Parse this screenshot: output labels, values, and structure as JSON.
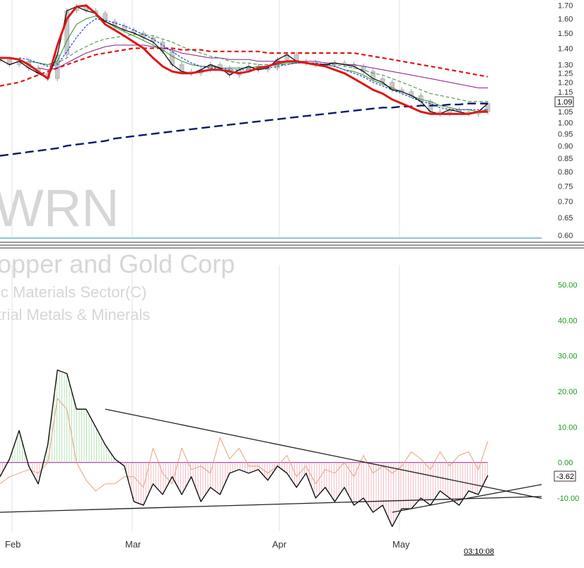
{
  "watermark": {
    "symbol": "WRN",
    "company": "opper and Gold Corp",
    "sector": "ic Materials Sector(C)",
    "industry": "trial Metals & Minerals"
  },
  "price_label": "1.09",
  "indicator_label": "-3.62",
  "timestamp": "03:10:08",
  "chart_data": [
    {
      "type": "line",
      "panel": "price",
      "yscale": "log",
      "ylim": [
        0.6,
        1.72
      ],
      "x_ticks": [
        "Feb",
        "Mar",
        "Apr",
        "May"
      ],
      "y_ticks": [
        "1.70",
        "1.60",
        "1.50",
        "1.40",
        "1.30",
        "1.25",
        "1.20",
        "1.15",
        "1.10",
        "1.05",
        "1.00",
        "0.95",
        "0.90",
        "0.85",
        "0.80",
        "0.75",
        "0.70",
        "0.65",
        "0.60"
      ],
      "series": [
        {
          "style": "close",
          "color": "#000000",
          "values": [
            1.33,
            1.3,
            1.32,
            1.28,
            1.25,
            1.22,
            1.36,
            1.66,
            1.69,
            1.66,
            1.64,
            1.58,
            1.55,
            1.52,
            1.5,
            1.47,
            1.44,
            1.38,
            1.3,
            1.26,
            1.25,
            1.27,
            1.3,
            1.28,
            1.24,
            1.27,
            1.29,
            1.27,
            1.28,
            1.33,
            1.36,
            1.32,
            1.31,
            1.3,
            1.3,
            1.31,
            1.3,
            1.29,
            1.26,
            1.22,
            1.2,
            1.16,
            1.15,
            1.13,
            1.1,
            1.05,
            1.04,
            1.06,
            1.05,
            1.04,
            1.05,
            1.09
          ]
        },
        {
          "style": "ma_red_thick",
          "color": "#e01515",
          "values": [
            1.34,
            1.34,
            1.33,
            1.3,
            1.26,
            1.22,
            1.42,
            1.6,
            1.69,
            1.7,
            1.64,
            1.56,
            1.52,
            1.48,
            1.44,
            1.4,
            1.34,
            1.29,
            1.26,
            1.25,
            1.25,
            1.26,
            1.27,
            1.27,
            1.26,
            1.25,
            1.26,
            1.28,
            1.29,
            1.31,
            1.32,
            1.32,
            1.31,
            1.3,
            1.29,
            1.27,
            1.25,
            1.22,
            1.19,
            1.16,
            1.14,
            1.11,
            1.09,
            1.07,
            1.05,
            1.04,
            1.04,
            1.04,
            1.04,
            1.04,
            1.05,
            1.05
          ]
        },
        {
          "style": "ma_blue_dotted",
          "color": "#1f3fd6",
          "values": [
            null,
            null,
            1.34,
            1.33,
            1.31,
            1.29,
            1.3,
            1.38,
            1.47,
            1.55,
            1.6,
            1.59,
            1.57,
            1.55,
            1.52,
            1.49,
            1.46,
            1.42,
            1.38,
            1.34,
            1.31,
            1.29,
            1.28,
            1.28,
            1.27,
            1.27,
            1.27,
            1.27,
            1.28,
            1.29,
            1.3,
            1.31,
            1.31,
            1.31,
            1.3,
            1.29,
            1.27,
            1.25,
            1.23,
            1.2,
            1.18,
            1.16,
            1.14,
            1.12,
            1.1,
            1.09,
            1.07,
            1.06,
            1.06,
            1.06,
            1.06,
            1.06
          ]
        },
        {
          "style": "ma_green",
          "color": "#2a8a2a",
          "values": [
            null,
            null,
            null,
            1.32,
            1.31,
            1.3,
            1.32,
            1.45,
            1.56,
            1.6,
            1.62,
            1.58,
            1.54,
            1.51,
            1.48,
            1.45,
            1.42,
            1.39,
            1.35,
            1.32,
            1.3,
            1.29,
            1.29,
            1.28,
            1.28,
            1.28,
            1.28,
            1.29,
            1.29,
            1.3,
            1.31,
            1.31,
            1.31,
            1.3,
            1.3,
            1.29,
            1.27,
            1.26,
            1.24,
            1.21,
            1.19,
            1.17,
            1.15,
            1.13,
            1.11,
            1.1,
            1.08,
            1.07,
            1.06,
            1.06,
            1.05,
            1.06
          ]
        },
        {
          "style": "ma_green_dashed",
          "color": "#3a8a3a",
          "values": [
            null,
            null,
            null,
            null,
            1.31,
            1.3,
            1.31,
            1.34,
            1.38,
            1.41,
            1.44,
            1.46,
            1.47,
            1.48,
            1.49,
            1.49,
            1.48,
            1.46,
            1.44,
            1.41,
            1.39,
            1.37,
            1.35,
            1.34,
            1.32,
            1.31,
            1.31,
            1.3,
            1.3,
            1.3,
            1.3,
            1.31,
            1.31,
            1.31,
            1.3,
            1.3,
            1.29,
            1.28,
            1.27,
            1.25,
            1.24,
            1.22,
            1.2,
            1.18,
            1.16,
            1.14,
            1.13,
            1.12,
            1.11,
            1.1,
            1.1,
            1.1
          ]
        },
        {
          "style": "ma_purple",
          "color": "#8a1a8a",
          "values": [
            null,
            null,
            null,
            null,
            1.28,
            1.27,
            1.28,
            1.31,
            1.34,
            1.37,
            1.39,
            1.41,
            1.42,
            1.42,
            1.42,
            1.42,
            1.41,
            1.4,
            1.39,
            1.37,
            1.36,
            1.35,
            1.34,
            1.34,
            1.33,
            1.33,
            1.33,
            1.32,
            1.32,
            1.32,
            1.32,
            1.32,
            1.32,
            1.32,
            1.31,
            1.31,
            1.3,
            1.3,
            1.29,
            1.28,
            1.27,
            1.26,
            1.25,
            1.24,
            1.23,
            1.22,
            1.21,
            1.2,
            1.19,
            1.18,
            1.17,
            1.17
          ]
        },
        {
          "style": "ma_red_dashed",
          "color": "#e01515",
          "values": [
            1.18,
            1.19,
            1.2,
            1.22,
            1.24,
            1.26,
            1.28,
            1.3,
            1.32,
            1.34,
            1.36,
            1.37,
            1.38,
            1.39,
            1.4,
            1.4,
            1.4,
            1.4,
            1.4,
            1.39,
            1.39,
            1.39,
            1.38,
            1.38,
            1.38,
            1.38,
            1.38,
            1.38,
            1.37,
            1.37,
            1.37,
            1.37,
            1.37,
            1.37,
            1.37,
            1.37,
            1.37,
            1.37,
            1.36,
            1.35,
            1.34,
            1.33,
            1.32,
            1.31,
            1.3,
            1.29,
            1.28,
            1.27,
            1.26,
            1.25,
            1.24,
            1.23
          ]
        },
        {
          "style": "ma_navy_dashed",
          "color": "#0a1a6a",
          "values": [
            0.86,
            0.865,
            0.87,
            0.875,
            0.88,
            0.885,
            0.89,
            0.9,
            0.905,
            0.91,
            0.915,
            0.92,
            0.93,
            0.935,
            0.94,
            0.945,
            0.95,
            0.955,
            0.96,
            0.965,
            0.97,
            0.975,
            0.98,
            0.985,
            0.99,
            0.995,
            1.0,
            1.005,
            1.01,
            1.015,
            1.02,
            1.025,
            1.03,
            1.035,
            1.04,
            1.045,
            1.05,
            1.055,
            1.06,
            1.065,
            1.07,
            1.07,
            1.075,
            1.075,
            1.08,
            1.08,
            1.08,
            1.085,
            1.085,
            1.09,
            1.09,
            1.09
          ]
        }
      ]
    },
    {
      "type": "line",
      "panel": "indicator",
      "ylim": [
        -20,
        55
      ],
      "y_ticks": [
        "50.00",
        "40.00",
        "30.00",
        "20.00",
        "10.00",
        "0.00",
        "-10.00"
      ],
      "zero_line": 0,
      "series": [
        {
          "style": "main",
          "color": "#000000",
          "values": [
            -4,
            1,
            9,
            -1,
            -6,
            5,
            26,
            25,
            15,
            15,
            10,
            5,
            1,
            -1,
            -11,
            -12,
            -6,
            -9,
            -4,
            -9,
            -4,
            -11,
            -7,
            -9,
            -3,
            -2,
            -3,
            -2,
            -5,
            -1,
            -3,
            -7,
            -3,
            -10,
            -7,
            -11,
            -7,
            -12,
            -10,
            -14,
            -12,
            -18,
            -13,
            -13,
            -10,
            -12,
            -8,
            -10,
            -12,
            -8,
            -9,
            -3.62
          ]
        },
        {
          "style": "signal",
          "color": "#e8a080",
          "values": [
            -6,
            -4,
            -3,
            -2,
            -3,
            0,
            18,
            15,
            0,
            -5,
            -8,
            -6,
            -6,
            -4,
            -4,
            -7,
            4,
            -3,
            -6,
            4,
            -2,
            -1,
            -3,
            7,
            1,
            4,
            -1,
            -1,
            -3,
            -1,
            2,
            -4,
            -1,
            -6,
            -2,
            -3,
            0,
            -4,
            2,
            -3,
            -1,
            -3,
            -1,
            3,
            1,
            -2,
            3,
            -1,
            2,
            3,
            -2,
            6
          ]
        }
      ],
      "trendlines": [
        {
          "from": [
            11,
            15
          ],
          "to": [
            51,
            -7
          ]
        },
        {
          "from": [
            0,
            -14
          ],
          "to": [
            51,
            -10
          ]
        },
        {
          "from": [
            41,
            -14
          ],
          "to": [
            51,
            -9
          ]
        }
      ]
    }
  ]
}
